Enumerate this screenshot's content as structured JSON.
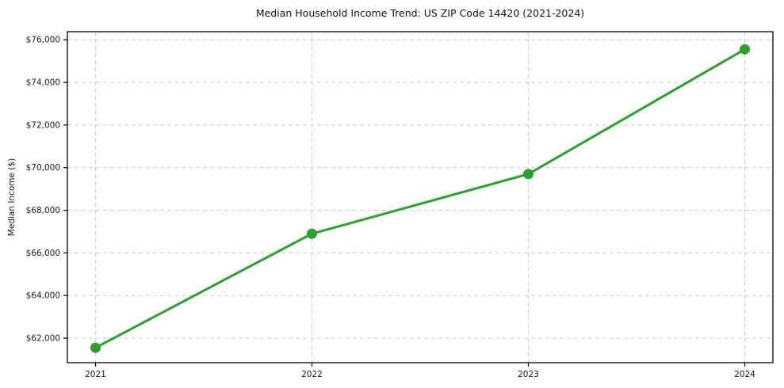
{
  "chart_data": {
    "type": "line",
    "title": "Median Household Income Trend: US ZIP Code 14420 (2021-2024)",
    "xlabel": "",
    "ylabel": "Median Income ($)",
    "categories": [
      "2021",
      "2022",
      "2023",
      "2024"
    ],
    "x": [
      2021,
      2022,
      2023,
      2024
    ],
    "values": [
      61550,
      66900,
      69700,
      75550
    ],
    "yticks": [
      62000,
      64000,
      66000,
      68000,
      70000,
      72000,
      74000,
      76000
    ],
    "ytick_labels": [
      "$62,000",
      "$64,000",
      "$66,000",
      "$68,000",
      "$70,000",
      "$72,000",
      "$74,000",
      "$76,000"
    ],
    "xlim": [
      2020.87,
      2024.13
    ],
    "ylim": [
      60850,
      76380
    ],
    "grid": true,
    "grid_style": "dashed",
    "legend": false,
    "line_color": "#2ca02c",
    "marker": "circle",
    "grid_color": "#cccccc",
    "axis_color": "#000000",
    "text_color": "#1a1a1a"
  }
}
